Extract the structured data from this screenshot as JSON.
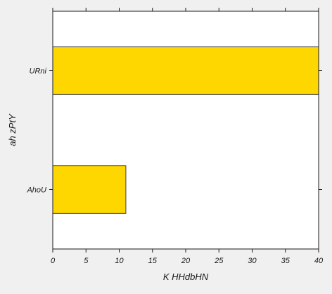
{
  "chart_data": {
    "type": "bar",
    "orientation": "horizontal",
    "categories": [
      "AhoU",
      "URni"
    ],
    "values": [
      11,
      40
    ],
    "xlabel": "K HHdbHN",
    "ylabel": "ah zPtY",
    "xlim": [
      0,
      40
    ],
    "xticks": [
      0,
      5,
      10,
      15,
      20,
      25,
      30,
      35,
      40
    ],
    "grid": false,
    "bar_color": "#ffd700",
    "bar_edge_color": "#1a1a1a",
    "plot_background": "#ffffff",
    "figure_background": "#f0f0f0"
  }
}
